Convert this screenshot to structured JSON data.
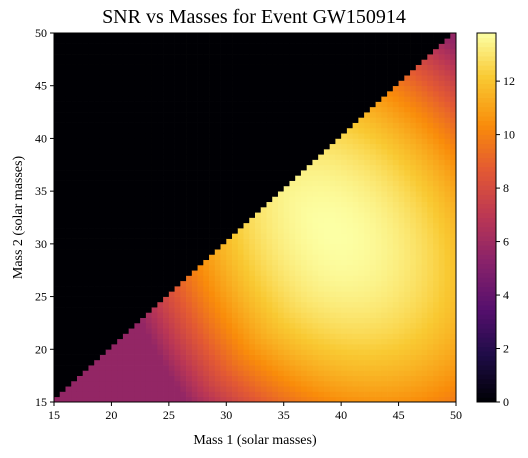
{
  "chart_data": {
    "type": "heatmap",
    "title": "SNR vs Masses for Event GW150914",
    "xlabel": "Mass 1 (solar masses)",
    "ylabel": "Mass 2 (solar masses)",
    "xlim": [
      15,
      50
    ],
    "ylim": [
      15,
      50
    ],
    "x_ticks": [
      15,
      20,
      25,
      30,
      35,
      40,
      45,
      50
    ],
    "y_ticks": [
      15,
      20,
      25,
      30,
      35,
      40,
      45,
      50
    ],
    "colormap": "inferno",
    "colorbar": {
      "range": [
        0,
        13.8
      ],
      "ticks": [
        0,
        2,
        4,
        6,
        8,
        10,
        12
      ]
    },
    "grid": false,
    "masked_region": "mass2 > mass1 (value 0)",
    "peak": {
      "mass1": 40,
      "mass2": 31,
      "snr": 13.8
    },
    "samples": [
      {
        "mass1": 17,
        "mass2": 16,
        "snr": 6.2
      },
      {
        "mass1": 20,
        "mass2": 18,
        "snr": 6.8
      },
      {
        "mass1": 25,
        "mass2": 20,
        "snr": 7.6
      },
      {
        "mass1": 30,
        "mass2": 20,
        "snr": 9.0
      },
      {
        "mass1": 30,
        "mass2": 29,
        "snr": 10.8
      },
      {
        "mass1": 35,
        "mass2": 33,
        "snr": 13.2
      },
      {
        "mass1": 40,
        "mass2": 30,
        "snr": 13.8
      },
      {
        "mass1": 45,
        "mass2": 20,
        "snr": 11.8
      },
      {
        "mass1": 48,
        "mass2": 45,
        "snr": 10.8
      },
      {
        "mass1": 50,
        "mass2": 16,
        "snr": 10.4
      }
    ]
  }
}
